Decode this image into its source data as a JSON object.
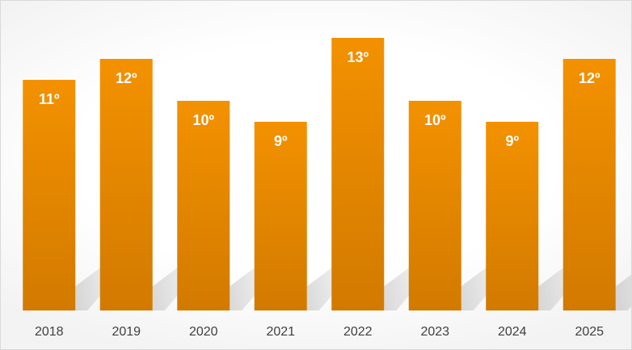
{
  "chart_data": {
    "type": "bar",
    "categories": [
      "2018",
      "2019",
      "2020",
      "2021",
      "2022",
      "2023",
      "2024",
      "2025"
    ],
    "values": [
      11,
      12,
      10,
      9,
      13,
      10,
      9,
      12
    ],
    "data_labels": [
      "11º",
      "12º",
      "10º",
      "9º",
      "13º",
      "10º",
      "9º",
      "12º"
    ],
    "title": "",
    "xlabel": "",
    "ylabel": "",
    "ylim": [
      0,
      14.6
    ],
    "grid": false,
    "legend": "none",
    "bar_color_top": "#F39100",
    "bar_color_bottom": "#D27A00",
    "label_color": "#FFFFFF",
    "tick_color": "#404040"
  }
}
